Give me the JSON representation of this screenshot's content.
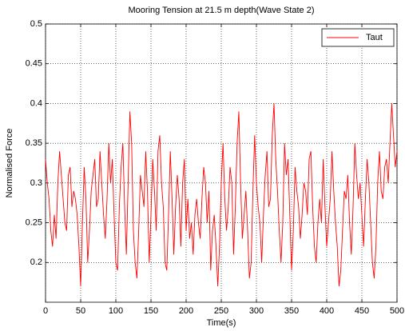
{
  "chart_data": {
    "type": "line",
    "title": "Mooring Tension at 21.5 m depth(Wave State 2)",
    "xlabel": "Time(s)",
    "ylabel": "Normalised Force",
    "xlim": [
      0,
      500
    ],
    "xticks": [
      0,
      50,
      100,
      150,
      200,
      250,
      300,
      350,
      400,
      450,
      500
    ],
    "ylim": [
      0.15,
      0.5
    ],
    "yticks": [
      0.2,
      0.25,
      0.3,
      0.35,
      0.4,
      0.45,
      0.5
    ],
    "grid": true,
    "legend": "upper right",
    "x": [
      0,
      2.5,
      5,
      7.5,
      10,
      12.5,
      15,
      17.5,
      20,
      22.5,
      25,
      27.5,
      30,
      32.5,
      35,
      37.5,
      40,
      42.5,
      45,
      47.5,
      50,
      52.5,
      55,
      57.5,
      60,
      62.5,
      65,
      67.5,
      70,
      72.5,
      75,
      77.5,
      80,
      82.5,
      85,
      87.5,
      90,
      92.5,
      95,
      97.5,
      100,
      102.5,
      105,
      107.5,
      110,
      112.5,
      115,
      117.5,
      120,
      122.5,
      125,
      127.5,
      130,
      132.5,
      135,
      137.5,
      140,
      142.5,
      145,
      147.5,
      150,
      152.5,
      155,
      157.5,
      160,
      162.5,
      165,
      167.5,
      170,
      172.5,
      175,
      177.5,
      180,
      182.5,
      185,
      187.5,
      190,
      192.5,
      195,
      197.5,
      200,
      202.5,
      205,
      207.5,
      210,
      212.5,
      215,
      217.5,
      220,
      222.5,
      225,
      227.5,
      230,
      232.5,
      235,
      237.5,
      240,
      242.5,
      245,
      247.5,
      250,
      252.5,
      255,
      257.5,
      260,
      262.5,
      265,
      267.5,
      270,
      272.5,
      275,
      277.5,
      280,
      282.5,
      285,
      287.5,
      290,
      292.5,
      295,
      297.5,
      300,
      302.5,
      305,
      307.5,
      310,
      312.5,
      315,
      317.5,
      320,
      322.5,
      325,
      327.5,
      330,
      332.5,
      335,
      337.5,
      340,
      342.5,
      345,
      347.5,
      350,
      352.5,
      355,
      357.5,
      360,
      362.5,
      365,
      367.5,
      370,
      372.5,
      375,
      377.5,
      380,
      382.5,
      385,
      387.5,
      390,
      392.5,
      395,
      397.5,
      400,
      402.5,
      405,
      407.5,
      410,
      412.5,
      415,
      417.5,
      420,
      422.5,
      425,
      427.5,
      430,
      432.5,
      435,
      437.5,
      440,
      442.5,
      445,
      447.5,
      450,
      452.5,
      455,
      457.5,
      460,
      462.5,
      465,
      467.5,
      470,
      472.5,
      475,
      477.5,
      480,
      482.5,
      485,
      487.5,
      490,
      492.5,
      495,
      497.5,
      500
    ],
    "series": [
      {
        "name": "Taut",
        "color": "#ff0000",
        "values": [
          0.33,
          0.3,
          0.28,
          0.24,
          0.22,
          0.26,
          0.23,
          0.3,
          0.34,
          0.31,
          0.28,
          0.25,
          0.24,
          0.31,
          0.32,
          0.27,
          0.29,
          0.28,
          0.26,
          0.22,
          0.17,
          0.25,
          0.32,
          0.28,
          0.2,
          0.24,
          0.29,
          0.31,
          0.33,
          0.27,
          0.28,
          0.34,
          0.3,
          0.26,
          0.23,
          0.28,
          0.35,
          0.3,
          0.33,
          0.26,
          0.2,
          0.19,
          0.27,
          0.32,
          0.35,
          0.27,
          0.21,
          0.3,
          0.39,
          0.35,
          0.24,
          0.2,
          0.18,
          0.24,
          0.31,
          0.29,
          0.27,
          0.34,
          0.29,
          0.2,
          0.26,
          0.33,
          0.29,
          0.24,
          0.34,
          0.36,
          0.3,
          0.27,
          0.2,
          0.19,
          0.26,
          0.34,
          0.28,
          0.21,
          0.27,
          0.31,
          0.28,
          0.22,
          0.3,
          0.33,
          0.24,
          0.28,
          0.23,
          0.25,
          0.21,
          0.26,
          0.28,
          0.25,
          0.23,
          0.28,
          0.32,
          0.3,
          0.25,
          0.29,
          0.19,
          0.24,
          0.26,
          0.22,
          0.17,
          0.22,
          0.3,
          0.35,
          0.28,
          0.24,
          0.27,
          0.32,
          0.3,
          0.21,
          0.27,
          0.35,
          0.39,
          0.3,
          0.23,
          0.26,
          0.29,
          0.24,
          0.18,
          0.2,
          0.29,
          0.36,
          0.3,
          0.27,
          0.25,
          0.2,
          0.26,
          0.31,
          0.34,
          0.27,
          0.28,
          0.36,
          0.4,
          0.33,
          0.29,
          0.24,
          0.2,
          0.25,
          0.35,
          0.31,
          0.33,
          0.26,
          0.19,
          0.24,
          0.32,
          0.29,
          0.27,
          0.23,
          0.26,
          0.3,
          0.29,
          0.26,
          0.33,
          0.34,
          0.27,
          0.22,
          0.2,
          0.25,
          0.28,
          0.25,
          0.33,
          0.27,
          0.22,
          0.25,
          0.28,
          0.34,
          0.29,
          0.25,
          0.22,
          0.17,
          0.19,
          0.24,
          0.29,
          0.28,
          0.31,
          0.25,
          0.21,
          0.27,
          0.35,
          0.31,
          0.28,
          0.3,
          0.26,
          0.22,
          0.28,
          0.33,
          0.3,
          0.25,
          0.2,
          0.18,
          0.22,
          0.3,
          0.34,
          0.29,
          0.28,
          0.32,
          0.33,
          0.3,
          0.35,
          0.4,
          0.36,
          0.32,
          0.34
        ]
      }
    ]
  }
}
